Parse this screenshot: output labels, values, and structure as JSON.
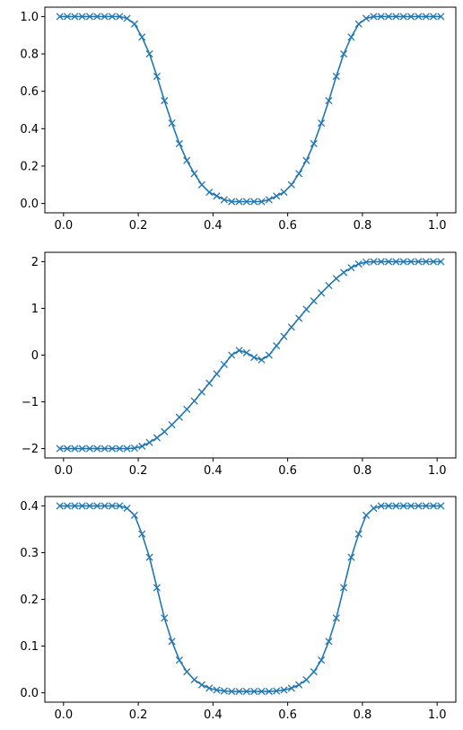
{
  "chart_data": [
    {
      "type": "line",
      "title": "",
      "xlabel": "",
      "ylabel": "",
      "color": "#1f77b4",
      "marker": "x",
      "grid": false,
      "xlim": [
        -0.05,
        1.05
      ],
      "ylim": [
        -0.05,
        1.05
      ],
      "xticks": [
        "0.0",
        "0.2",
        "0.4",
        "0.6",
        "0.8",
        "1.0"
      ],
      "yticks": [
        "0.0",
        "0.2",
        "0.4",
        "0.6",
        "0.8",
        "1.0"
      ],
      "x": [
        -0.01,
        0.01,
        0.03,
        0.05,
        0.07,
        0.09,
        0.11,
        0.13,
        0.15,
        0.17,
        0.19,
        0.21,
        0.23,
        0.25,
        0.27,
        0.29,
        0.31,
        0.33,
        0.35,
        0.37,
        0.39,
        0.41,
        0.43,
        0.45,
        0.47,
        0.49,
        0.51,
        0.53,
        0.55,
        0.57,
        0.59,
        0.61,
        0.63,
        0.65,
        0.67,
        0.69,
        0.71,
        0.73,
        0.75,
        0.77,
        0.79,
        0.81,
        0.83,
        0.85,
        0.87,
        0.89,
        0.91,
        0.93,
        0.95,
        0.97,
        0.99,
        1.01
      ],
      "y": [
        1.0,
        1.0,
        1.0,
        1.0,
        1.0,
        1.0,
        1.0,
        1.0,
        1.0,
        0.99,
        0.96,
        0.89,
        0.8,
        0.68,
        0.55,
        0.43,
        0.32,
        0.23,
        0.16,
        0.1,
        0.06,
        0.04,
        0.02,
        0.01,
        0.01,
        0.01,
        0.01,
        0.01,
        0.02,
        0.04,
        0.06,
        0.1,
        0.16,
        0.23,
        0.32,
        0.43,
        0.55,
        0.68,
        0.8,
        0.89,
        0.96,
        0.99,
        1.0,
        1.0,
        1.0,
        1.0,
        1.0,
        1.0,
        1.0,
        1.0,
        1.0,
        1.0
      ]
    },
    {
      "type": "line",
      "title": "",
      "xlabel": "",
      "ylabel": "",
      "color": "#1f77b4",
      "marker": "x",
      "grid": false,
      "xlim": [
        -0.05,
        1.05
      ],
      "ylim": [
        -2.2,
        2.2
      ],
      "xticks": [
        "0.0",
        "0.2",
        "0.4",
        "0.6",
        "0.8",
        "1.0"
      ],
      "yticks": [
        "−2",
        "−1",
        "0",
        "1",
        "2"
      ],
      "x": [
        -0.01,
        0.01,
        0.03,
        0.05,
        0.07,
        0.09,
        0.11,
        0.13,
        0.15,
        0.17,
        0.19,
        0.21,
        0.23,
        0.25,
        0.27,
        0.29,
        0.31,
        0.33,
        0.35,
        0.37,
        0.39,
        0.41,
        0.43,
        0.45,
        0.47,
        0.49,
        0.51,
        0.53,
        0.55,
        0.57,
        0.59,
        0.61,
        0.63,
        0.65,
        0.67,
        0.69,
        0.71,
        0.73,
        0.75,
        0.77,
        0.79,
        0.81,
        0.83,
        0.85,
        0.87,
        0.89,
        0.91,
        0.93,
        0.95,
        0.97,
        0.99,
        1.01
      ],
      "y": [
        -2.0,
        -2.0,
        -2.0,
        -2.0,
        -2.0,
        -2.0,
        -2.0,
        -2.0,
        -2.0,
        -2.0,
        -1.99,
        -1.95,
        -1.87,
        -1.77,
        -1.64,
        -1.49,
        -1.33,
        -1.16,
        -0.98,
        -0.79,
        -0.6,
        -0.4,
        -0.2,
        0.0,
        0.1,
        0.05,
        -0.05,
        -0.1,
        0.0,
        0.2,
        0.4,
        0.6,
        0.79,
        0.98,
        1.16,
        1.33,
        1.49,
        1.64,
        1.77,
        1.87,
        1.95,
        1.99,
        2.0,
        2.0,
        2.0,
        2.0,
        2.0,
        2.0,
        2.0,
        2.0,
        2.0,
        2.0
      ]
    },
    {
      "type": "line",
      "title": "",
      "xlabel": "",
      "ylabel": "",
      "color": "#1f77b4",
      "marker": "x",
      "grid": false,
      "xlim": [
        -0.05,
        1.05
      ],
      "ylim": [
        -0.02,
        0.42
      ],
      "xticks": [
        "0.0",
        "0.2",
        "0.4",
        "0.6",
        "0.8",
        "1.0"
      ],
      "yticks": [
        "0.0",
        "0.1",
        "0.2",
        "0.3",
        "0.4"
      ],
      "x": [
        -0.01,
        0.01,
        0.03,
        0.05,
        0.07,
        0.09,
        0.11,
        0.13,
        0.15,
        0.17,
        0.19,
        0.21,
        0.23,
        0.25,
        0.27,
        0.29,
        0.31,
        0.33,
        0.35,
        0.37,
        0.39,
        0.41,
        0.43,
        0.45,
        0.47,
        0.49,
        0.51,
        0.53,
        0.55,
        0.57,
        0.59,
        0.61,
        0.63,
        0.65,
        0.67,
        0.69,
        0.71,
        0.73,
        0.75,
        0.77,
        0.79,
        0.81,
        0.83,
        0.85,
        0.87,
        0.89,
        0.91,
        0.93,
        0.95,
        0.97,
        0.99,
        1.01
      ],
      "y": [
        0.4,
        0.4,
        0.4,
        0.4,
        0.4,
        0.4,
        0.4,
        0.4,
        0.4,
        0.395,
        0.38,
        0.34,
        0.29,
        0.225,
        0.16,
        0.11,
        0.07,
        0.045,
        0.028,
        0.017,
        0.01,
        0.006,
        0.004,
        0.003,
        0.003,
        0.003,
        0.003,
        0.003,
        0.003,
        0.004,
        0.006,
        0.01,
        0.017,
        0.028,
        0.045,
        0.07,
        0.11,
        0.16,
        0.225,
        0.29,
        0.34,
        0.38,
        0.395,
        0.4,
        0.4,
        0.4,
        0.4,
        0.4,
        0.4,
        0.4,
        0.4,
        0.4
      ]
    }
  ]
}
